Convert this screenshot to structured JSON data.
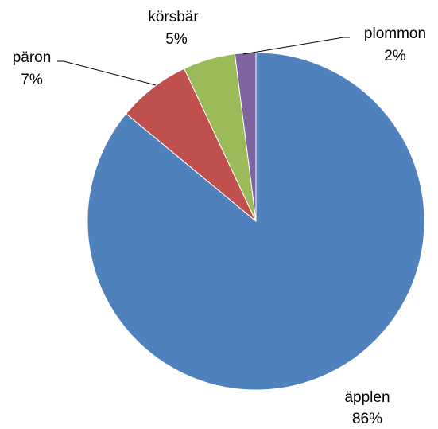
{
  "chart_data": {
    "type": "pie",
    "categories": [
      "äpplen",
      "päron",
      "körsbär",
      "plommon"
    ],
    "values": [
      86,
      7,
      5,
      2
    ],
    "value_labels": [
      "86%",
      "7%",
      "5%",
      "2%"
    ],
    "colors": [
      "#4f81bd",
      "#c0504d",
      "#9bbb59",
      "#8064a2"
    ]
  }
}
